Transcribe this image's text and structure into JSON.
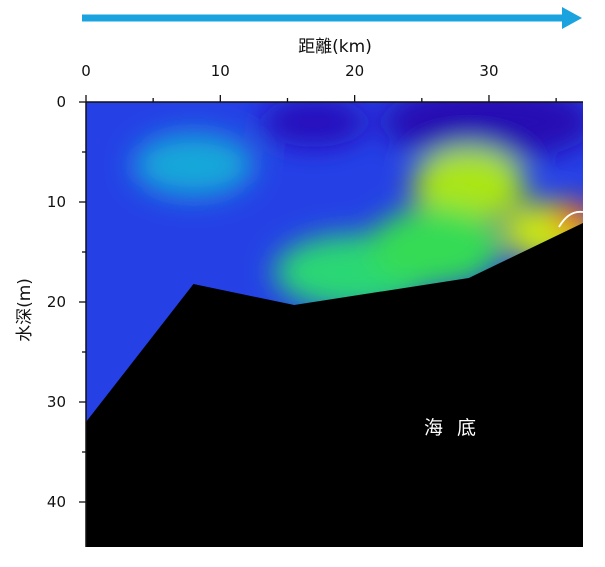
{
  "chart_data": {
    "type": "heatmap",
    "title": "",
    "xlabel": "距離(km)",
    "ylabel": "水深(m)",
    "x_axis_position": "top",
    "y_axis_inverted": true,
    "xlim": [
      0,
      37
    ],
    "ylim": [
      0,
      44.5
    ],
    "xticks": [
      0,
      10,
      20,
      30
    ],
    "yticks": [
      0,
      10,
      20,
      30,
      40
    ],
    "x_minor_step": 5,
    "y_minor_step": 5,
    "grid": false,
    "legend": "none",
    "direction_arrow": "left-to-right",
    "annotation": "海 底",
    "seabed_profile": [
      {
        "x": 0,
        "y": 32
      },
      {
        "x": 8,
        "y": 18.2
      },
      {
        "x": 15.5,
        "y": 20.3
      },
      {
        "x": 28.5,
        "y": 17.6
      },
      {
        "x": 37,
        "y": 12.1
      }
    ],
    "background_level": 0.18,
    "features": [
      {
        "x": 30,
        "y": 2,
        "level": 0.02,
        "rx": 8,
        "ry": 4
      },
      {
        "x": 17,
        "y": 2,
        "level": 0.04,
        "rx": 4,
        "ry": 2.5
      },
      {
        "x": 8,
        "y": 6.3,
        "level": 0.42,
        "rx": 4.5,
        "ry": 3.2
      },
      {
        "x": 28.5,
        "y": 8.3,
        "level": 0.72,
        "rx": 4.2,
        "ry": 3.8
      },
      {
        "x": 20,
        "y": 17,
        "level": 0.55,
        "rx": 6,
        "ry": 3.8
      },
      {
        "x": 26,
        "y": 14.5,
        "level": 0.58,
        "rx": 5,
        "ry": 4
      },
      {
        "x": 34.5,
        "y": 13,
        "level": 0.75,
        "rx": 3.5,
        "ry": 3
      },
      {
        "x": 36.4,
        "y": 11.6,
        "level": 0.95,
        "rx": 1.6,
        "ry": 1.6
      }
    ]
  },
  "colors": {
    "arrow": "#1aa3df",
    "seabed": "#000000",
    "axis": "#111111",
    "seabed_label": "#ffffff"
  }
}
